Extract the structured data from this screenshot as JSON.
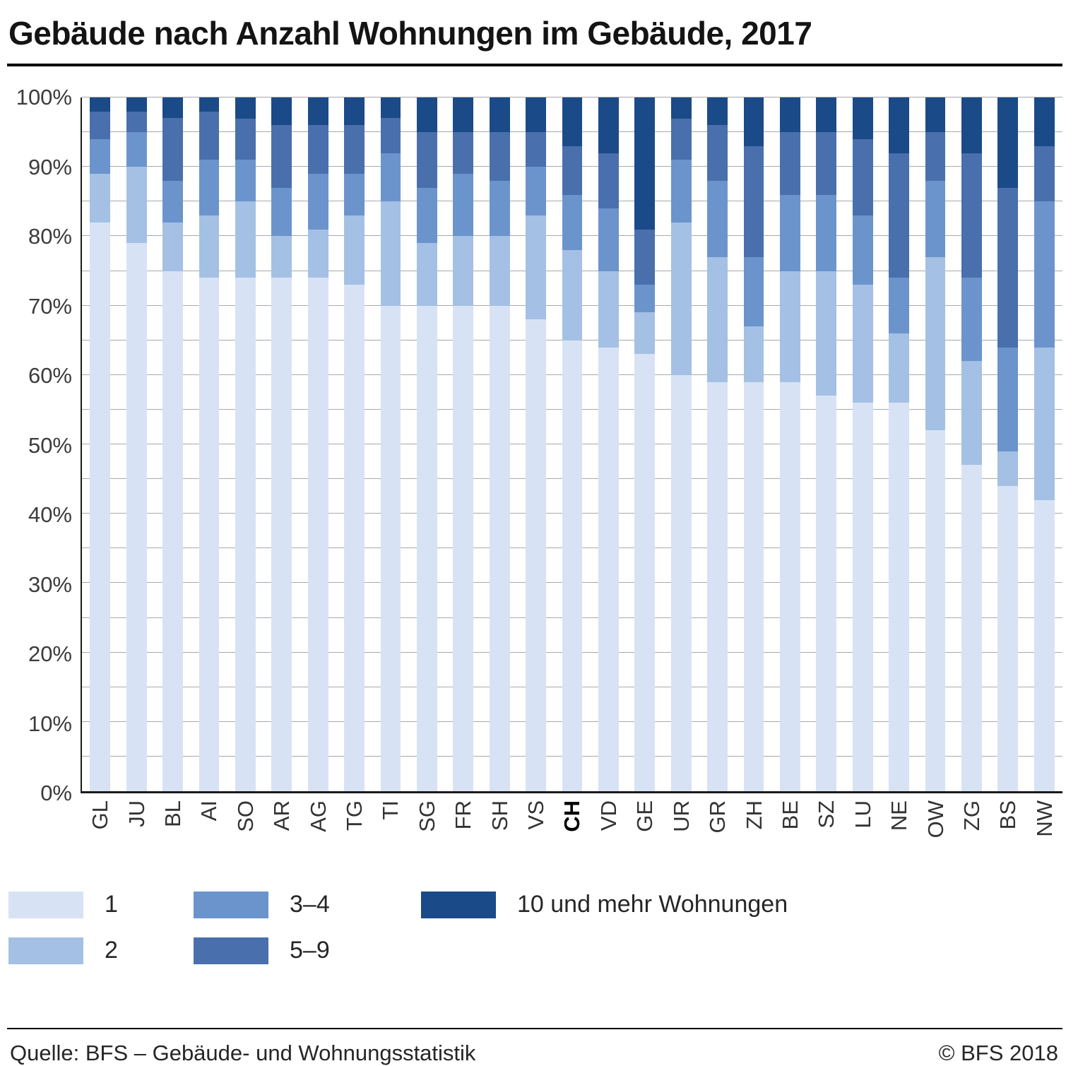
{
  "title": "Gebäude nach Anzahl Wohnungen im Gebäude, 2017",
  "footer": {
    "source": "Quelle: BFS – Gebäude- und Wohnungsstatistik",
    "copyright": "© BFS 2018"
  },
  "legend": {
    "items": [
      {
        "label": "1",
        "color": "#d7e3f4"
      },
      {
        "label": "2",
        "color": "#a4c0e4"
      },
      {
        "label": "3–4",
        "color": "#6b94cd"
      },
      {
        "label": "5–9",
        "color": "#4a6fad"
      },
      {
        "label": "10 und mehr Wohnungen",
        "color": "#1b4a88"
      }
    ],
    "columns": [
      [
        0,
        1
      ],
      [
        2,
        3
      ],
      [
        4
      ]
    ]
  },
  "chart_data": {
    "type": "bar",
    "stacked": true,
    "unit": "%",
    "title": "Gebäude nach Anzahl Wohnungen im Gebäude, 2017",
    "xlabel": "",
    "ylabel": "",
    "ylim": [
      0,
      100
    ],
    "grid_step": 5,
    "label_step": 10,
    "grid": true,
    "legend_position": "bottom",
    "bold_category": "CH",
    "categories": [
      "GL",
      "JU",
      "BL",
      "AI",
      "SO",
      "AR",
      "AG",
      "TG",
      "TI",
      "SG",
      "FR",
      "SH",
      "VS",
      "CH",
      "VD",
      "GE",
      "UR",
      "GR",
      "ZH",
      "BE",
      "SZ",
      "LU",
      "NE",
      "OW",
      "ZG",
      "BS",
      "NW"
    ],
    "series": [
      {
        "name": "1",
        "color": "#d7e3f4",
        "values": [
          82,
          79,
          75,
          74,
          74,
          74,
          74,
          73,
          70,
          70,
          70,
          70,
          68,
          65,
          64,
          63,
          60,
          59,
          59,
          59,
          57,
          56,
          56,
          52,
          47,
          44,
          42
        ]
      },
      {
        "name": "2",
        "color": "#a4c0e4",
        "values": [
          7,
          11,
          7,
          9,
          11,
          6,
          7,
          10,
          15,
          9,
          10,
          10,
          15,
          13,
          11,
          6,
          22,
          18,
          8,
          16,
          18,
          17,
          10,
          25,
          15,
          5,
          22
        ]
      },
      {
        "name": "3–4",
        "color": "#6b94cd",
        "values": [
          5,
          5,
          6,
          8,
          6,
          7,
          8,
          6,
          7,
          8,
          9,
          8,
          7,
          8,
          9,
          4,
          9,
          11,
          10,
          11,
          11,
          10,
          8,
          11,
          12,
          15,
          21
        ]
      },
      {
        "name": "5–9",
        "color": "#4a6fad",
        "values": [
          4,
          3,
          9,
          7,
          6,
          9,
          7,
          7,
          5,
          8,
          6,
          7,
          5,
          7,
          8,
          8,
          6,
          8,
          16,
          9,
          9,
          11,
          18,
          7,
          18,
          23,
          8
        ]
      },
      {
        "name": "10 und mehr Wohnungen",
        "color": "#1b4a88",
        "values": [
          2,
          2,
          3,
          2,
          3,
          4,
          4,
          4,
          3,
          5,
          5,
          5,
          5,
          7,
          8,
          19,
          3,
          4,
          7,
          5,
          5,
          6,
          8,
          5,
          8,
          13,
          7
        ]
      }
    ],
    "y_tick_labels": [
      "0%",
      "10%",
      "20%",
      "30%",
      "40%",
      "50%",
      "60%",
      "70%",
      "80%",
      "90%",
      "100%"
    ]
  }
}
